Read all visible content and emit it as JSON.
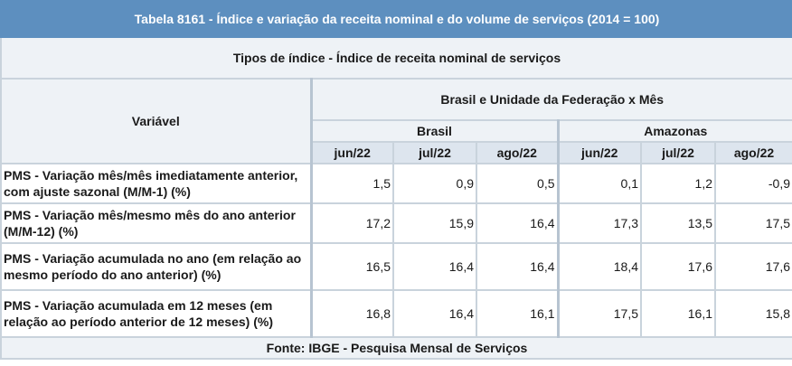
{
  "table": {
    "title": "Tabela 8161 - Índice e variação da receita nominal e do volume de serviços (2014 = 100)",
    "subtitle": "Tipos de índice - Índice de receita nominal de serviços",
    "variable_header": "Variável",
    "group_header": "Brasil e Unidade da Federação x Mês",
    "regions": [
      "Brasil",
      "Amazonas"
    ],
    "months": [
      "jun/22",
      "jul/22",
      "ago/22",
      "jun/22",
      "jul/22",
      "ago/22"
    ],
    "rows": [
      {
        "label": "PMS - Variação mês/mês imediatamente anterior, com ajuste sazonal (M/M-1) (%)",
        "values": [
          "1,5",
          "0,9",
          "0,5",
          "0,1",
          "1,2",
          "-0,9"
        ]
      },
      {
        "label": "PMS - Variação mês/mesmo mês do ano anterior (M/M-12) (%)",
        "values": [
          "17,2",
          "15,9",
          "16,4",
          "17,3",
          "13,5",
          "17,5"
        ]
      },
      {
        "label": "PMS - Variação acumulada no ano (em relação ao mesmo período do ano anterior) (%)",
        "values": [
          "16,5",
          "16,4",
          "16,4",
          "18,4",
          "17,6",
          "17,6"
        ]
      },
      {
        "label": "PMS - Variação acumulada em 12 meses (em relação ao período anterior de 12 meses) (%)",
        "values": [
          "16,8",
          "16,4",
          "16,1",
          "17,5",
          "16,1",
          "15,8"
        ]
      }
    ],
    "footer": "Fonte: IBGE - Pesquisa Mensal de Serviços"
  }
}
